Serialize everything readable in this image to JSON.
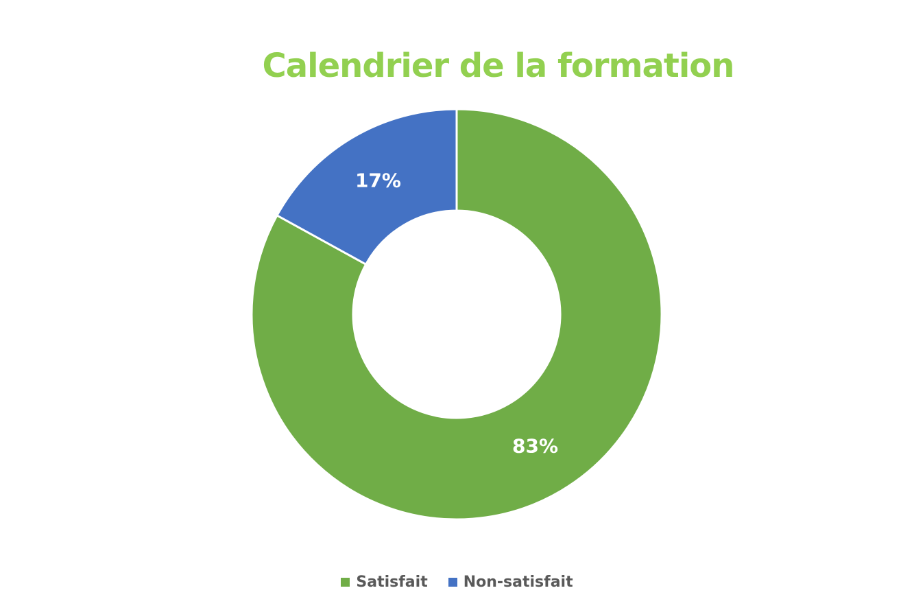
{
  "chart_data": {
    "type": "pie",
    "subtype": "donut",
    "title": "Calendrier de la formation",
    "title_color": "#92d050",
    "categories": [
      "Satisfait",
      "Non-satisfait"
    ],
    "values": [
      83,
      17
    ],
    "data_labels": [
      "83%",
      "17%"
    ],
    "colors": [
      "#70ad47",
      "#4472c4"
    ],
    "legend": {
      "placement": "bottom",
      "entries": [
        "Satisfait",
        "Non-satisfait"
      ]
    }
  }
}
